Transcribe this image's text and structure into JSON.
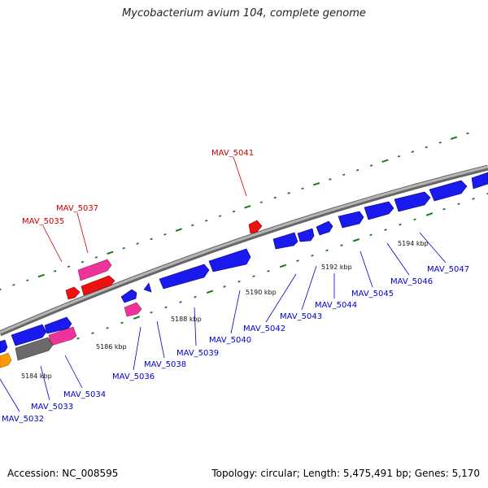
{
  "title": "Mycobacterium avium 104, complete genome",
  "footer": {
    "accession": "Accession: NC_008595",
    "summary": "Topology: circular; Length: 5,475,491 bp; Genes: 5,170"
  },
  "colors": {
    "forward_label": "#cc0000",
    "reverse_label": "#0000cc",
    "ticks": "#1a7a1a",
    "backbone": "#8c8c8c",
    "cds": "#1a1aee",
    "rna": "#ee3399",
    "red": "#ee1111",
    "gray": "#6a6a6a",
    "orange": "#ff9900"
  },
  "scale_labels": [
    "5184 kbp",
    "5186 kbp",
    "5188 kbp",
    "5190 kbp",
    "5192 kbp",
    "5194 kbp"
  ],
  "gene_labels": [
    "MAV_5041",
    "MAV_5037",
    "MAV_5035",
    "MAV_5032",
    "MAV_5033",
    "MAV_5034",
    "MAV_5036",
    "MAV_5038",
    "MAV_5039",
    "MAV_5040",
    "MAV_5042",
    "MAV_5043",
    "MAV_5044",
    "MAV_5045",
    "MAV_5046",
    "MAV_5047"
  ]
}
